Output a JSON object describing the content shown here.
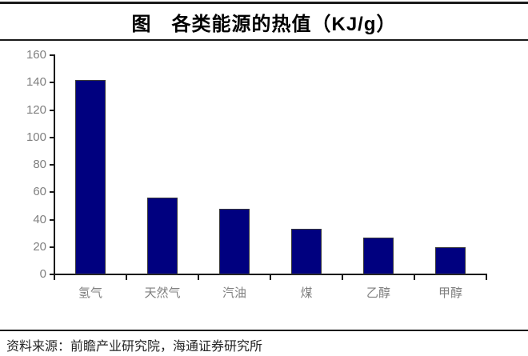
{
  "title": "图　各类能源的热值（KJ/g）",
  "source": "资料来源：前瞻产业研究院，海通证券研究所",
  "colors": {
    "bar_fill": "#00007F",
    "bar_border": "#3a3a3a",
    "axis": "#1a1a1a",
    "label_gray": "#7f7f7f",
    "rule": "#1a1a1a"
  },
  "chart_data": {
    "type": "bar",
    "categories": [
      "氢气",
      "天然气",
      "汽油",
      "煤",
      "乙醇",
      "甲醇"
    ],
    "values": [
      142,
      56,
      48,
      33,
      27,
      20
    ],
    "title": "图　各类能源的热值（KJ/g）",
    "xlabel": "",
    "ylabel": "",
    "ylim": [
      0,
      160
    ],
    "ytick_step": 20,
    "grid": false,
    "legend": false,
    "bar_color": "#00007F"
  }
}
